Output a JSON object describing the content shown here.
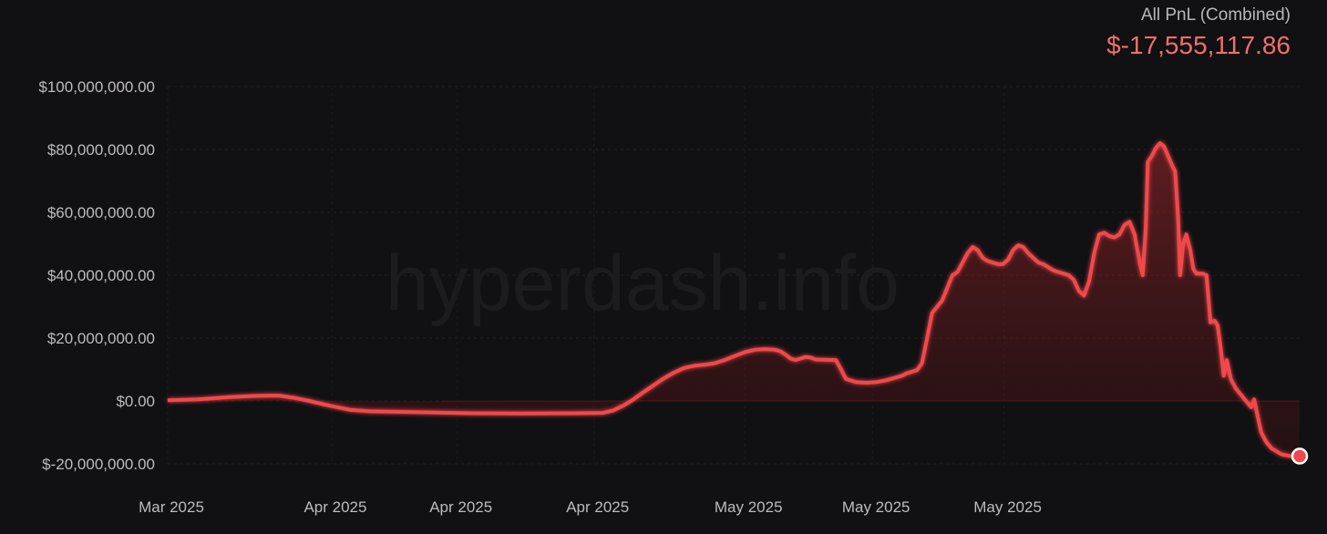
{
  "summary": {
    "label": "All PnL (Combined)",
    "value": "$-17,555,117.86"
  },
  "watermark": "hyperdash.info",
  "colors": {
    "background": "#111012",
    "line": "#f0484c",
    "text": "#bdbbbe",
    "summary_value": "#f0706a",
    "zero_band": "#2c1415"
  },
  "chart_data": {
    "type": "area",
    "title": "",
    "xlabel": "",
    "ylabel": "",
    "ylim": [
      -20000000,
      100000000
    ],
    "y_ticks": [
      {
        "value": 100000000,
        "label": "$100,000,000.00"
      },
      {
        "value": 80000000,
        "label": "$80,000,000.00"
      },
      {
        "value": 60000000,
        "label": "$60,000,000.00"
      },
      {
        "value": 40000000,
        "label": "$40,000,000.00"
      },
      {
        "value": 20000000,
        "label": "$20,000,000.00"
      },
      {
        "value": 0,
        "label": "$0.00"
      },
      {
        "value": -20000000,
        "label": "$-20,000,000.00"
      }
    ],
    "x_ticks": [
      {
        "label": "Mar 2025",
        "pos": 0.0
      },
      {
        "label": "Apr 2025",
        "pos": 0.162
      },
      {
        "label": "Apr 2025",
        "pos": 0.286
      },
      {
        "label": "Apr 2025",
        "pos": 0.421
      },
      {
        "label": "May 2025",
        "pos": 0.57
      },
      {
        "label": "May 2025",
        "pos": 0.696
      },
      {
        "label": "May 2025",
        "pos": 0.826
      }
    ],
    "grid": true,
    "legend": "none",
    "series": [
      {
        "color": "#f0484c",
        "points": [
          [
            0.0,
            0.2
          ],
          [
            0.03,
            0.5
          ],
          [
            0.06,
            1.2
          ],
          [
            0.085,
            1.6
          ],
          [
            0.1,
            1.7
          ],
          [
            0.11,
            1.7
          ],
          [
            0.125,
            1.0
          ],
          [
            0.14,
            0.0
          ],
          [
            0.16,
            -1.5
          ],
          [
            0.18,
            -2.8
          ],
          [
            0.2,
            -3.3
          ],
          [
            0.25,
            -3.6
          ],
          [
            0.3,
            -3.9
          ],
          [
            0.35,
            -4.0
          ],
          [
            0.4,
            -3.9
          ],
          [
            0.43,
            -3.8
          ],
          [
            0.44,
            -3.0
          ],
          [
            0.45,
            -1.5
          ],
          [
            0.46,
            0.5
          ],
          [
            0.47,
            2.8
          ],
          [
            0.48,
            5.0
          ],
          [
            0.49,
            7.2
          ],
          [
            0.5,
            9.0
          ],
          [
            0.51,
            10.5
          ],
          [
            0.52,
            11.2
          ],
          [
            0.53,
            11.5
          ],
          [
            0.54,
            12.0
          ],
          [
            0.55,
            13.0
          ],
          [
            0.56,
            14.3
          ],
          [
            0.57,
            15.5
          ],
          [
            0.58,
            16.3
          ],
          [
            0.59,
            16.5
          ],
          [
            0.6,
            16.3
          ],
          [
            0.605,
            15.8
          ],
          [
            0.61,
            14.8
          ],
          [
            0.615,
            13.5
          ],
          [
            0.62,
            13.0
          ],
          [
            0.63,
            14.0
          ],
          [
            0.635,
            13.8
          ],
          [
            0.64,
            13.2
          ],
          [
            0.66,
            13.0
          ],
          [
            0.665,
            10.0
          ],
          [
            0.67,
            7.0
          ],
          [
            0.68,
            6.0
          ],
          [
            0.69,
            5.8
          ],
          [
            0.7,
            6.0
          ],
          [
            0.71,
            6.6
          ],
          [
            0.72,
            7.5
          ],
          [
            0.725,
            8.0
          ],
          [
            0.73,
            8.8
          ],
          [
            0.74,
            9.8
          ],
          [
            0.745,
            12.0
          ],
          [
            0.75,
            20.0
          ],
          [
            0.755,
            28.0
          ],
          [
            0.76,
            30.0
          ],
          [
            0.765,
            32.0
          ],
          [
            0.77,
            36.0
          ],
          [
            0.775,
            40.0
          ],
          [
            0.78,
            41.0
          ],
          [
            0.785,
            44.0
          ],
          [
            0.79,
            47.0
          ],
          [
            0.795,
            49.0
          ],
          [
            0.8,
            48.0
          ],
          [
            0.805,
            45.5
          ],
          [
            0.81,
            44.5
          ],
          [
            0.815,
            44.0
          ],
          [
            0.82,
            43.5
          ],
          [
            0.825,
            43.5
          ],
          [
            0.83,
            45.0
          ],
          [
            0.835,
            48.0
          ],
          [
            0.84,
            49.5
          ],
          [
            0.845,
            49.0
          ],
          [
            0.85,
            47.0
          ],
          [
            0.855,
            45.5
          ],
          [
            0.86,
            44.0
          ],
          [
            0.865,
            43.5
          ],
          [
            0.87,
            42.5
          ],
          [
            0.875,
            41.5
          ],
          [
            0.88,
            41.0
          ],
          [
            0.885,
            40.5
          ],
          [
            0.89,
            40.0
          ],
          [
            0.895,
            38.5
          ],
          [
            0.9,
            35.0
          ],
          [
            0.905,
            33.5
          ],
          [
            0.91,
            38.0
          ],
          [
            0.915,
            47.0
          ],
          [
            0.92,
            53.0
          ],
          [
            0.925,
            53.5
          ],
          [
            0.93,
            52.5
          ],
          [
            0.935,
            52.0
          ],
          [
            0.94,
            53.0
          ],
          [
            0.945,
            56.0
          ],
          [
            0.95,
            57.0
          ],
          [
            0.955,
            53.0
          ],
          [
            0.96,
            44.0
          ],
          [
            0.963,
            40.0
          ],
          [
            0.966,
            55.0
          ],
          [
            0.968,
            76.0
          ],
          [
            0.972,
            78.0
          ],
          [
            0.976,
            80.5
          ],
          [
            0.98,
            82.0
          ],
          [
            0.984,
            81.0
          ],
          [
            0.988,
            78.0
          ],
          [
            0.992,
            75.0
          ],
          [
            0.995,
            73.0
          ],
          [
            0.998,
            58.0
          ],
          [
            1.0,
            40.0
          ],
          [
            1.003,
            50.0
          ],
          [
            1.006,
            53.0
          ],
          [
            1.01,
            48.0
          ],
          [
            1.013,
            42.0
          ],
          [
            1.016,
            40.5
          ],
          [
            1.022,
            40.5
          ],
          [
            1.026,
            40.0
          ],
          [
            1.03,
            25.0
          ],
          [
            1.034,
            25.5
          ],
          [
            1.037,
            24.0
          ],
          [
            1.04,
            17.0
          ],
          [
            1.043,
            8.0
          ],
          [
            1.046,
            13.0
          ],
          [
            1.05,
            7.0
          ],
          [
            1.055,
            4.0
          ],
          [
            1.06,
            2.0
          ],
          [
            1.065,
            0.0
          ],
          [
            1.07,
            -2.0
          ],
          [
            1.073,
            0.5
          ],
          [
            1.076,
            -4.0
          ],
          [
            1.08,
            -10.0
          ],
          [
            1.085,
            -13.0
          ],
          [
            1.09,
            -15.0
          ],
          [
            1.1,
            -17.0
          ],
          [
            1.11,
            -17.6
          ],
          [
            1.118,
            -17.55
          ]
        ]
      }
    ]
  }
}
